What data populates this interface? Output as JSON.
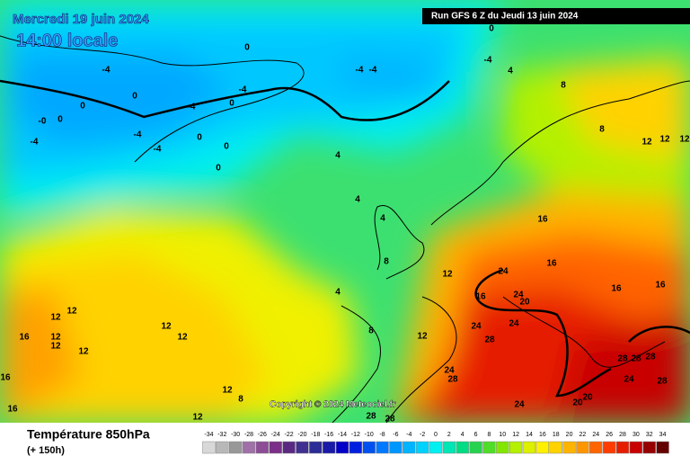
{
  "header": {
    "date": "Mercredi 19 juin 2024",
    "time": "14:00 locale",
    "run": "Run GFS 6 Z du Jeudi 13 juin 2024",
    "copyright": "Copyright © 2024 Meteociel.fr"
  },
  "footer": {
    "title": "Température 850hPa",
    "lead": "(+ 150h)"
  },
  "legend": {
    "scale": [
      -34,
      -32,
      -30,
      -28,
      -26,
      -24,
      -22,
      -20,
      -18,
      -16,
      -14,
      -12,
      -10,
      -8,
      -6,
      -4,
      -2,
      0,
      2,
      4,
      6,
      8,
      10,
      12,
      14,
      16,
      18,
      20,
      22,
      24,
      26,
      28,
      30,
      32,
      34
    ],
    "colors": [
      "#d8d8d8",
      "#b8b8b8",
      "#989898",
      "#a070a8",
      "#8c4c96",
      "#7a2f88",
      "#5a2a82",
      "#403090",
      "#2c2c96",
      "#1a1aa8",
      "#0000c8",
      "#0020e0",
      "#0050f0",
      "#0078ff",
      "#0096ff",
      "#00b4ff",
      "#00d2ff",
      "#00f0f0",
      "#00e6b4",
      "#00dc82",
      "#28d250",
      "#50dc28",
      "#82e600",
      "#b4f000",
      "#dcf000",
      "#fff000",
      "#ffd200",
      "#ffb400",
      "#ff9600",
      "#ff6400",
      "#ff3c00",
      "#e61e00",
      "#c80000",
      "#960000",
      "#640000"
    ]
  },
  "map": {
    "labels": [
      "0",
      "-4",
      "0",
      "0",
      "-0",
      "0",
      "-4",
      "-4",
      "-4",
      "0",
      "0",
      "0",
      "-4",
      "-4",
      "0",
      "-4",
      "-4",
      "-4",
      "4",
      "0",
      "4",
      "4",
      "4",
      "8",
      "4",
      "8",
      "12",
      "12",
      "24",
      "16",
      "16",
      "16",
      "16",
      "16",
      "24",
      "20",
      "24",
      "24",
      "28",
      "24",
      "28",
      "24",
      "20",
      "20",
      "28",
      "28",
      "28",
      "24",
      "28",
      "12",
      "12",
      "12",
      "8",
      "8",
      "12",
      "12",
      "12",
      "12",
      "16",
      "12",
      "12",
      "12",
      "12",
      "12",
      "8",
      "28",
      "28",
      "16",
      "16"
    ]
  }
}
